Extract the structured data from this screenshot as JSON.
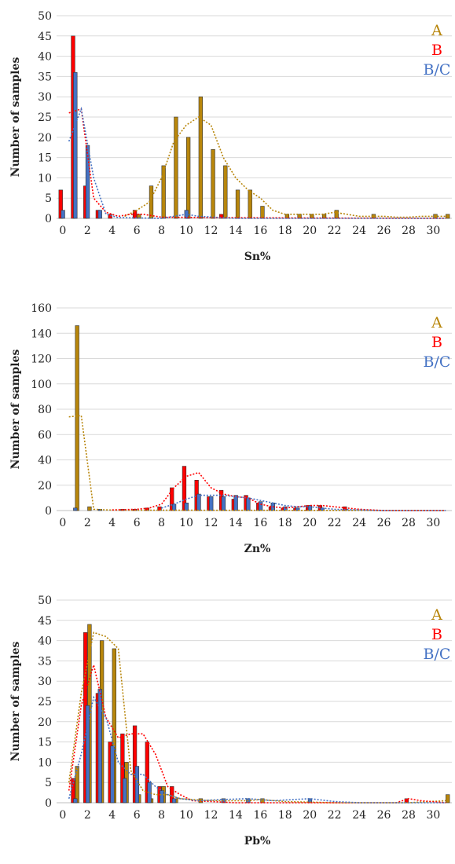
{
  "colors": {
    "A": "#b8860b",
    "B": "#ff0000",
    "BC": "#4472c4",
    "grid": "#d9d9d9"
  },
  "chart_data": [
    {
      "type": "bar",
      "id": "sn",
      "xlabel": "Sn%",
      "ylabel": "Number of samples",
      "ylim": [
        0,
        50
      ],
      "ytick_step": 5,
      "xlim": [
        0,
        31
      ],
      "xticks": [
        0,
        2,
        4,
        6,
        8,
        10,
        12,
        14,
        16,
        18,
        20,
        22,
        24,
        26,
        28,
        30
      ],
      "grid": "horizontal",
      "legend_position": "top-right",
      "series": [
        {
          "name": "A",
          "color_key": "A",
          "values": [
            [
              6,
              1
            ],
            [
              7,
              8
            ],
            [
              8,
              13
            ],
            [
              9,
              25
            ],
            [
              10,
              20
            ],
            [
              11,
              30
            ],
            [
              12,
              17
            ],
            [
              13,
              13
            ],
            [
              14,
              7
            ],
            [
              15,
              7
            ],
            [
              16,
              3
            ],
            [
              18,
              1
            ],
            [
              19,
              1
            ],
            [
              20,
              1
            ],
            [
              21,
              1
            ],
            [
              22,
              2
            ],
            [
              25,
              1
            ],
            [
              30,
              1
            ],
            [
              31,
              1
            ]
          ]
        },
        {
          "name": "B",
          "color_key": "B",
          "values": [
            [
              0,
              7
            ],
            [
              1,
              45
            ],
            [
              2,
              8
            ],
            [
              3,
              2
            ],
            [
              4,
              1
            ],
            [
              6,
              2
            ],
            [
              13,
              1
            ]
          ]
        },
        {
          "name": "B/C",
          "color_key": "BC",
          "values": [
            [
              0,
              2
            ],
            [
              1,
              36
            ],
            [
              2,
              18
            ],
            [
              3,
              2
            ],
            [
              10,
              2
            ]
          ]
        }
      ],
      "trendlines": [
        {
          "series": "A",
          "points": [
            [
              5,
              0.5
            ],
            [
              6,
              2
            ],
            [
              7,
              4
            ],
            [
              8,
              10
            ],
            [
              9,
              19
            ],
            [
              10,
              23
            ],
            [
              11,
              25
            ],
            [
              12,
              23
            ],
            [
              13,
              15
            ],
            [
              14,
              10
            ],
            [
              15,
              7
            ],
            [
              16,
              5
            ],
            [
              17,
              2
            ],
            [
              18,
              1
            ],
            [
              19,
              1
            ],
            [
              20,
              1
            ],
            [
              21,
              1
            ],
            [
              22,
              1.5
            ],
            [
              23,
              1
            ],
            [
              24,
              0.5
            ],
            [
              25,
              0.5
            ],
            [
              26,
              0.5
            ],
            [
              27,
              0.3
            ],
            [
              28,
              0.3
            ],
            [
              29,
              0.5
            ],
            [
              30,
              0.5
            ],
            [
              31,
              0.5
            ]
          ]
        },
        {
          "series": "B",
          "points": [
            [
              0.5,
              26
            ],
            [
              1.5,
              27
            ],
            [
              2.5,
              5
            ],
            [
              3.5,
              1.5
            ],
            [
              4.5,
              0.5
            ],
            [
              5.5,
              1
            ],
            [
              6.5,
              1
            ],
            [
              8,
              0.3
            ],
            [
              12,
              0.2
            ],
            [
              20,
              0.1
            ],
            [
              31,
              0
            ]
          ]
        },
        {
          "series": "B/C",
          "points": [
            [
              0.5,
              19
            ],
            [
              1.5,
              27
            ],
            [
              2.5,
              10
            ],
            [
              3.5,
              1
            ],
            [
              4.5,
              0.2
            ],
            [
              8,
              0
            ],
            [
              10,
              1
            ],
            [
              11,
              0.5
            ],
            [
              14,
              0
            ],
            [
              31,
              0
            ]
          ]
        }
      ]
    },
    {
      "type": "bar",
      "id": "zn",
      "xlabel": "Zn%",
      "ylabel": "Number of samples",
      "ylim": [
        0,
        160
      ],
      "ytick_step": 20,
      "xlim": [
        0,
        31
      ],
      "xticks": [
        0,
        2,
        4,
        6,
        8,
        10,
        12,
        14,
        16,
        18,
        20,
        22,
        24,
        26,
        28,
        30
      ],
      "grid": "horizontal",
      "legend_position": "top-right",
      "series": [
        {
          "name": "A",
          "color_key": "A",
          "values": [
            [
              1,
              146
            ],
            [
              2,
              3
            ]
          ]
        },
        {
          "name": "B",
          "color_key": "B",
          "values": [
            [
              5,
              1
            ],
            [
              6,
              1
            ],
            [
              7,
              2
            ],
            [
              8,
              3
            ],
            [
              9,
              18
            ],
            [
              10,
              35
            ],
            [
              11,
              24
            ],
            [
              12,
              11
            ],
            [
              13,
              16
            ],
            [
              14,
              9
            ],
            [
              15,
              12
            ],
            [
              16,
              6
            ],
            [
              17,
              3
            ],
            [
              18,
              2
            ],
            [
              19,
              2
            ],
            [
              20,
              4
            ],
            [
              21,
              4
            ],
            [
              23,
              3
            ]
          ]
        },
        {
          "name": "B/C",
          "color_key": "BC",
          "values": [
            [
              1,
              2
            ],
            [
              3,
              1
            ],
            [
              9,
              5
            ],
            [
              10,
              6
            ],
            [
              11,
              13
            ],
            [
              12,
              11
            ],
            [
              13,
              11
            ],
            [
              14,
              12
            ],
            [
              15,
              10
            ],
            [
              16,
              7
            ],
            [
              17,
              6
            ],
            [
              18,
              3
            ],
            [
              19,
              2
            ],
            [
              20,
              4
            ],
            [
              21,
              2
            ]
          ]
        }
      ],
      "trendlines": [
        {
          "series": "A",
          "points": [
            [
              0.5,
              74
            ],
            [
              1.5,
              75
            ],
            [
              2.5,
              1
            ],
            [
              3.5,
              0.5
            ],
            [
              5,
              0.3
            ],
            [
              31,
              0
            ]
          ]
        },
        {
          "series": "B",
          "points": [
            [
              4,
              0.5
            ],
            [
              6,
              1
            ],
            [
              7,
              2
            ],
            [
              8,
              5
            ],
            [
              9,
              18
            ],
            [
              10,
              27
            ],
            [
              11,
              30
            ],
            [
              12,
              18
            ],
            [
              13,
              13
            ],
            [
              14,
              11
            ],
            [
              15,
              10
            ],
            [
              16,
              5
            ],
            [
              17,
              3
            ],
            [
              18,
              2
            ],
            [
              19,
              3
            ],
            [
              20,
              4
            ],
            [
              21,
              4
            ],
            [
              22,
              3
            ],
            [
              23,
              2
            ],
            [
              24,
              1
            ],
            [
              25,
              0.5
            ],
            [
              26,
              0
            ],
            [
              31,
              0
            ]
          ]
        },
        {
          "series": "B/C",
          "points": [
            [
              8,
              2
            ],
            [
              9,
              5
            ],
            [
              10,
              9
            ],
            [
              11,
              12
            ],
            [
              12,
              12
            ],
            [
              13,
              12
            ],
            [
              14,
              11
            ],
            [
              15,
              10
            ],
            [
              16,
              8
            ],
            [
              17,
              6
            ],
            [
              18,
              4
            ],
            [
              19,
              3
            ],
            [
              20,
              3
            ],
            [
              21,
              2
            ],
            [
              22,
              1
            ],
            [
              24,
              0.5
            ],
            [
              26,
              0
            ],
            [
              31,
              0
            ]
          ]
        }
      ]
    },
    {
      "type": "bar",
      "id": "pb",
      "xlabel": "Pb%",
      "ylabel": "Number of samples",
      "ylim": [
        0,
        50
      ],
      "ytick_step": 5,
      "xlim": [
        0,
        31
      ],
      "xticks": [
        0,
        2,
        4,
        6,
        8,
        10,
        12,
        14,
        16,
        18,
        20,
        22,
        24,
        26,
        28,
        30
      ],
      "grid": "horizontal",
      "legend_position": "top-right",
      "series": [
        {
          "name": "A",
          "color_key": "A",
          "values": [
            [
              1,
              9
            ],
            [
              2,
              44
            ],
            [
              3,
              40
            ],
            [
              4,
              38
            ],
            [
              5,
              10
            ],
            [
              6,
              2
            ],
            [
              7,
              1
            ],
            [
              8,
              4
            ],
            [
              9,
              1
            ],
            [
              11,
              1
            ],
            [
              16,
              1
            ],
            [
              31,
              2
            ]
          ]
        },
        {
          "name": "B",
          "color_key": "B",
          "values": [
            [
              1,
              6
            ],
            [
              2,
              42
            ],
            [
              3,
              27
            ],
            [
              4,
              15
            ],
            [
              5,
              17
            ],
            [
              6,
              19
            ],
            [
              7,
              15
            ],
            [
              8,
              4
            ],
            [
              9,
              4
            ],
            [
              28,
              1
            ]
          ]
        },
        {
          "name": "B/C",
          "color_key": "BC",
          "values": [
            [
              1,
              1
            ],
            [
              2,
              24
            ],
            [
              3,
              28
            ],
            [
              4,
              14
            ],
            [
              5,
              6
            ],
            [
              6,
              9
            ],
            [
              7,
              5
            ],
            [
              8,
              3
            ],
            [
              9,
              1
            ],
            [
              13,
              1
            ],
            [
              15,
              1
            ],
            [
              20,
              1
            ]
          ]
        }
      ],
      "trendlines": [
        {
          "series": "A",
          "points": [
            [
              0.5,
              5
            ],
            [
              1.5,
              27
            ],
            [
              2.5,
              42
            ],
            [
              3.5,
              41
            ],
            [
              4.5,
              38
            ],
            [
              5.5,
              8
            ],
            [
              6.5,
              3
            ],
            [
              7.5,
              2
            ],
            [
              8.5,
              2
            ],
            [
              9.5,
              1
            ],
            [
              10.5,
              0.8
            ],
            [
              11.5,
              0.6
            ],
            [
              13,
              0.5
            ],
            [
              15,
              0.5
            ],
            [
              16,
              0.8
            ],
            [
              18,
              0.3
            ],
            [
              22,
              0
            ],
            [
              28,
              0
            ],
            [
              31,
              0.5
            ]
          ]
        },
        {
          "series": "B",
          "points": [
            [
              0.5,
              3
            ],
            [
              1.5,
              24
            ],
            [
              2.5,
              34
            ],
            [
              3.5,
              21
            ],
            [
              4.5,
              16
            ],
            [
              5.5,
              17
            ],
            [
              6.5,
              17
            ],
            [
              7.5,
              12
            ],
            [
              8.5,
              4
            ],
            [
              9.5,
              2
            ],
            [
              10.5,
              0.5
            ],
            [
              14,
              0
            ],
            [
              27,
              0
            ],
            [
              28,
              1
            ],
            [
              29,
              0.5
            ],
            [
              31,
              0
            ]
          ]
        },
        {
          "series": "B/C",
          "points": [
            [
              0.5,
              1
            ],
            [
              1.5,
              12
            ],
            [
              2.5,
              26
            ],
            [
              3.5,
              21
            ],
            [
              4.5,
              10
            ],
            [
              5.5,
              7
            ],
            [
              6.5,
              7
            ],
            [
              7.5,
              4
            ],
            [
              8.5,
              2
            ],
            [
              9.5,
              1
            ],
            [
              11,
              0.5
            ],
            [
              13,
              0.8
            ],
            [
              15,
              1
            ],
            [
              17,
              0.5
            ],
            [
              20,
              1
            ],
            [
              22,
              0.3
            ],
            [
              24,
              0
            ],
            [
              31,
              0
            ]
          ]
        }
      ]
    }
  ]
}
